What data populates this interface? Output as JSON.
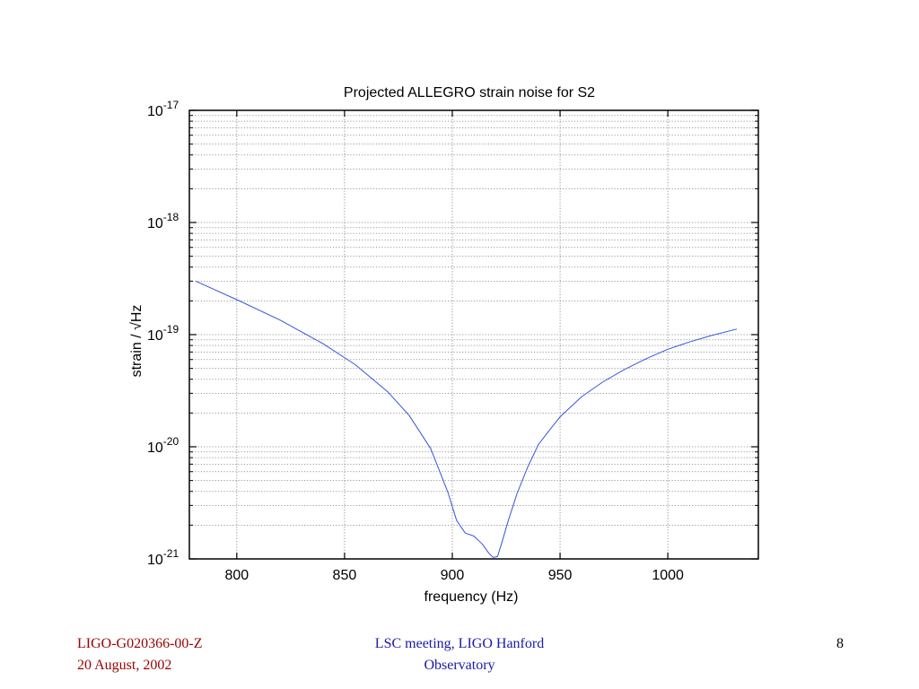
{
  "chart_data": {
    "type": "line",
    "title": "Projected ALLEGRO strain noise for S2",
    "xlabel": "frequency (Hz)",
    "ylabel": "strain / √Hz",
    "xlim": [
      778,
      1042
    ],
    "ylim": [
      1e-21,
      1e-17
    ],
    "yscale": "log",
    "grid": true,
    "x_ticks": [
      800,
      850,
      900,
      950,
      1000
    ],
    "x_tick_labels": [
      "800",
      "850",
      "900",
      "950",
      "1000"
    ],
    "y_ticks": [
      {
        "value": 1e-21,
        "base": "10",
        "exp": "-21"
      },
      {
        "value": 1e-20,
        "base": "10",
        "exp": "-20"
      },
      {
        "value": 1e-19,
        "base": "10",
        "exp": "-19"
      },
      {
        "value": 1e-18,
        "base": "10",
        "exp": "-18"
      },
      {
        "value": 1e-17,
        "base": "10",
        "exp": "-17"
      }
    ],
    "series": [
      {
        "color": "#3355dd",
        "x": [
          781,
          800,
          820,
          840,
          855,
          870,
          880,
          890,
          898,
          902,
          906,
          910,
          914,
          917,
          919,
          921,
          923,
          926,
          930,
          935,
          940,
          945,
          950,
          960,
          970,
          980,
          990,
          1000,
          1010,
          1020,
          1032
        ],
        "y": [
          3e-19,
          2.05e-19,
          1.35e-19,
          8.3e-20,
          5.4e-20,
          3.1e-20,
          1.9e-20,
          9.6e-21,
          3.9e-21,
          2.2e-21,
          1.7e-21,
          1.6e-21,
          1.35e-21,
          1.12e-21,
          1.03e-21,
          1.05e-21,
          1.4e-21,
          2.2e-21,
          3.8e-21,
          6.6e-21,
          1.05e-20,
          1.4e-20,
          1.85e-20,
          2.8e-20,
          3.8e-20,
          4.9e-20,
          6.1e-20,
          7.4e-20,
          8.6e-20,
          9.8e-20,
          1.12e-19
        ]
      }
    ]
  },
  "footer": {
    "doc_id": "LIGO-G020366-00-Z",
    "date": "20 August, 2002",
    "meeting_line1": "LSC meeting, LIGO Hanford",
    "meeting_line2": "Observatory",
    "page_number": "8"
  }
}
